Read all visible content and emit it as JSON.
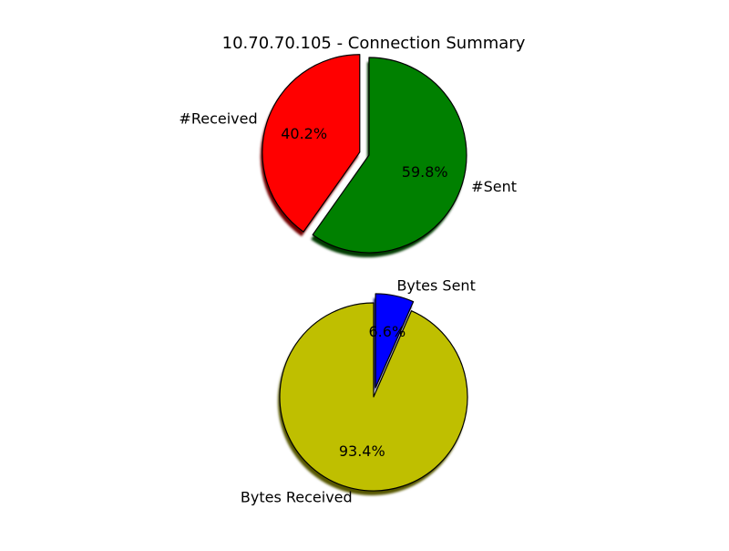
{
  "chart_data": [
    {
      "type": "pie",
      "title": "10.70.70.105 - Connection Summary",
      "slices": [
        {
          "label": "#Received",
          "value": 40.2,
          "pct_label": "40.2%",
          "color": "#ff0000",
          "exploded": true
        },
        {
          "label": "#Sent",
          "value": 59.8,
          "pct_label": "59.8%",
          "color": "#008000",
          "exploded": false
        }
      ],
      "start_angle_deg": 90,
      "shadow": true
    },
    {
      "type": "pie",
      "title": "",
      "slices": [
        {
          "label": "Bytes Sent",
          "value": 6.6,
          "pct_label": "6.6%",
          "color": "#0000ff",
          "exploded": true
        },
        {
          "label": "Bytes Received",
          "value": 93.4,
          "pct_label": "93.4%",
          "color": "#bfbf00",
          "exploded": false
        }
      ],
      "start_angle_deg": 90,
      "counterclock": false,
      "shadow": true
    }
  ]
}
